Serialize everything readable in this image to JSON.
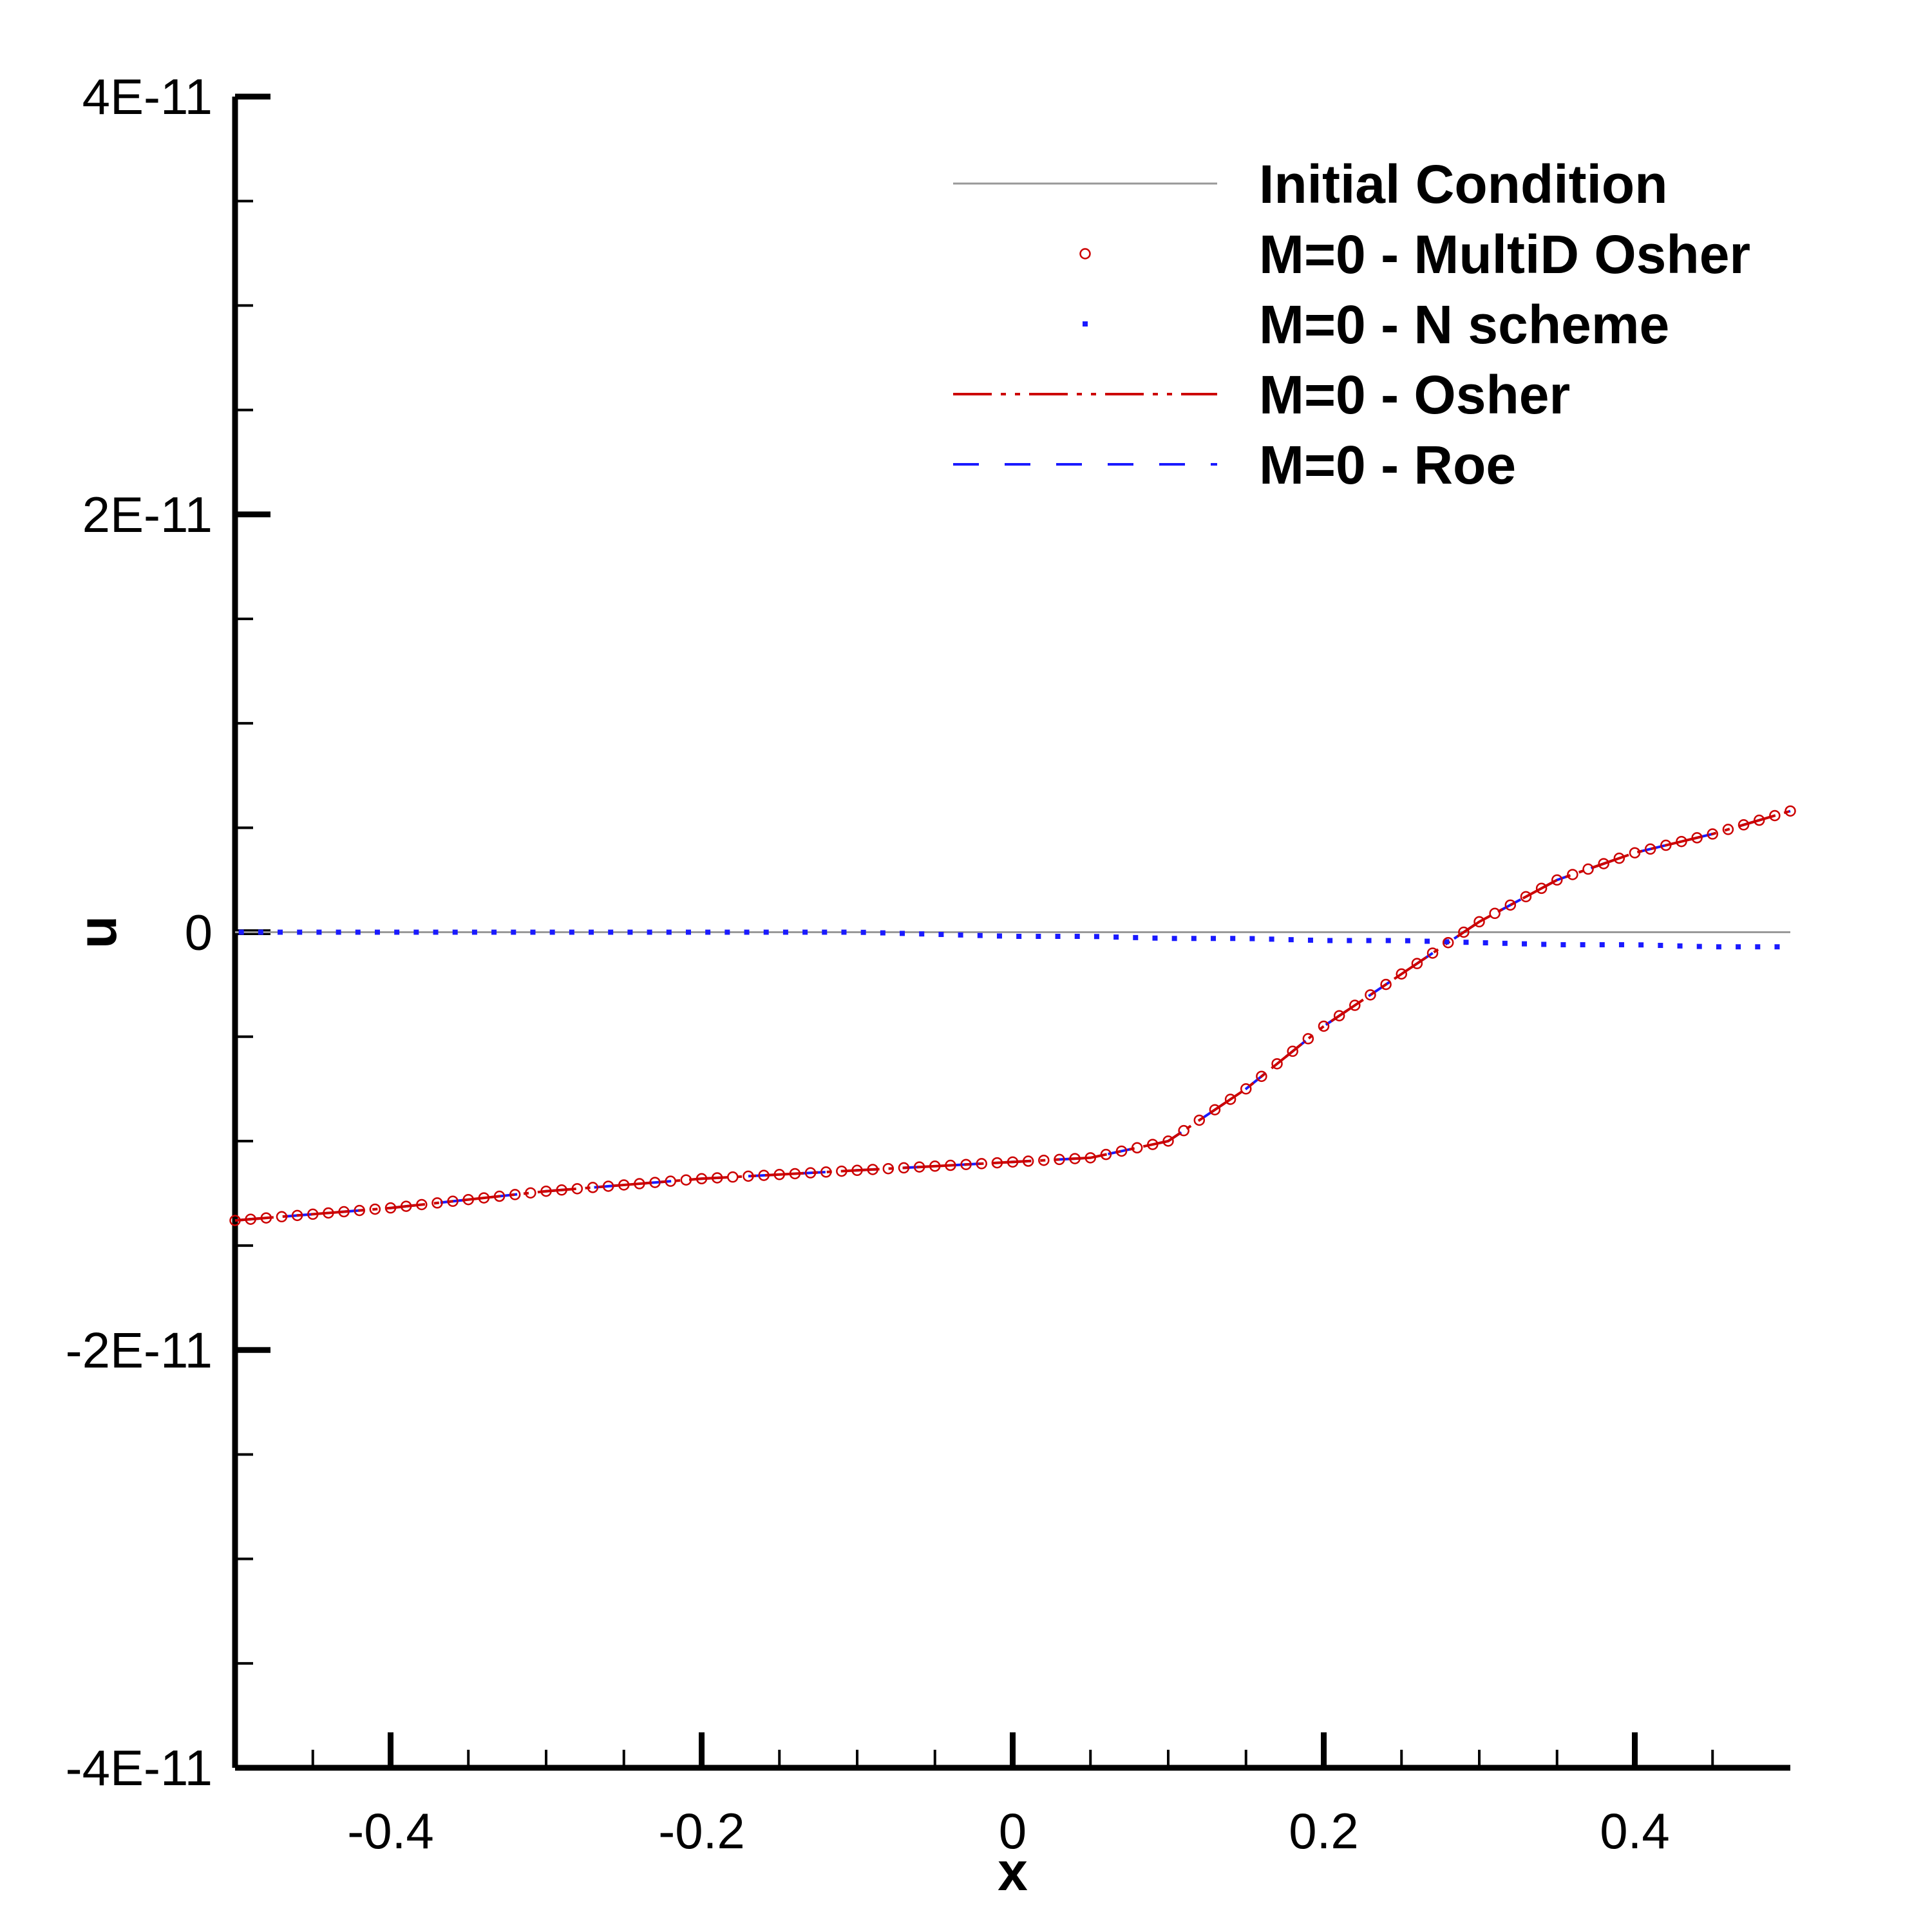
{
  "chart_data": {
    "type": "line",
    "xlabel": "x",
    "ylabel": "u",
    "xlim": [
      -0.5,
      0.5
    ],
    "ylim": [
      -4e-11,
      4e-11
    ],
    "x_ticks": [
      -0.4,
      -0.2,
      0,
      0.2,
      0.4
    ],
    "x_tick_labels": [
      "-0.4",
      "-0.2",
      "0",
      "0.2",
      "0.4"
    ],
    "y_ticks": [
      4e-11,
      2e-11,
      0,
      -2e-11,
      -4e-11
    ],
    "y_tick_labels": [
      "4E-11",
      "2E-11",
      "0",
      "-2E-11",
      "-4E-11"
    ],
    "grid": false,
    "legend_position": "top-right",
    "x": [
      -0.5,
      -0.4,
      -0.3,
      -0.2,
      -0.1,
      0.0,
      0.05,
      0.1,
      0.15,
      0.2,
      0.25,
      0.3,
      0.35,
      0.4,
      0.45,
      0.5
    ],
    "series": [
      {
        "name": "Initial Condition",
        "style": "solid",
        "color": "#999999",
        "values": [
          0,
          0,
          0,
          0,
          0,
          0,
          0,
          0,
          0,
          0,
          0,
          0,
          0,
          0,
          0,
          0
        ]
      },
      {
        "name": "M=0 - MultiD Osher",
        "style": "circle-markers",
        "color": "#cc0000",
        "values": [
          -1.38e-11,
          -1.32e-11,
          -1.24e-11,
          -1.18e-11,
          -1.14e-11,
          -1.1e-11,
          -1.08e-11,
          -1e-11,
          -7.5e-12,
          -4.5e-12,
          -2e-12,
          5e-13,
          2.5e-12,
          3.8e-12,
          4.7e-12,
          5.8e-12
        ]
      },
      {
        "name": "M=0 - N scheme",
        "style": "dotted",
        "color": "#1a1aff",
        "values": [
          0,
          0,
          0,
          0,
          0,
          -2e-13,
          -2e-13,
          -3e-13,
          -3e-13,
          -4e-13,
          -4e-13,
          -5e-13,
          -6e-13,
          -6e-13,
          -7e-13,
          -7e-13
        ]
      },
      {
        "name": "M=0 - Osher",
        "style": "dash-dot-dot",
        "color": "#cc0000",
        "values": [
          -1.38e-11,
          -1.32e-11,
          -1.24e-11,
          -1.18e-11,
          -1.14e-11,
          -1.1e-11,
          -1.08e-11,
          -1e-11,
          -7.5e-12,
          -4.5e-12,
          -2e-12,
          5e-13,
          2.5e-12,
          3.8e-12,
          4.7e-12,
          5.8e-12
        ]
      },
      {
        "name": "M=0 - Roe",
        "style": "dashed",
        "color": "#1a1aff",
        "values": [
          -1.38e-11,
          -1.32e-11,
          -1.24e-11,
          -1.18e-11,
          -1.14e-11,
          -1.1e-11,
          -1.08e-11,
          -1e-11,
          -7.5e-12,
          -4.5e-12,
          -2e-12,
          5e-13,
          2.5e-12,
          3.8e-12,
          4.7e-12,
          5.8e-12
        ]
      }
    ]
  }
}
